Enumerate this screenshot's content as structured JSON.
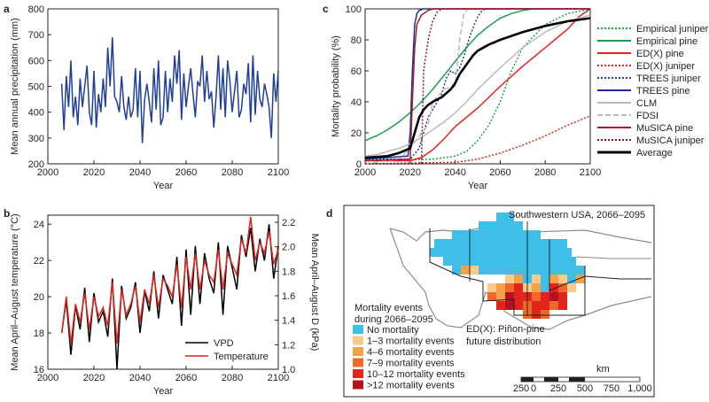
{
  "chart_data": [
    {
      "panel": "a",
      "type": "line",
      "xlabel": "Year",
      "ylabel": "Mean annual precipitation (mm)",
      "xlim": [
        2000,
        2100
      ],
      "ylim": [
        200,
        800
      ],
      "xticks": [
        2000,
        2020,
        2040,
        2060,
        2080,
        2100
      ],
      "yticks": [
        200,
        300,
        400,
        500,
        600,
        700,
        800
      ],
      "series": [
        {
          "color": "#1f3f99",
          "x": [
            2006,
            2007,
            2008,
            2009,
            2010,
            2011,
            2012,
            2013,
            2014,
            2015,
            2016,
            2017,
            2018,
            2019,
            2020,
            2021,
            2022,
            2023,
            2024,
            2025,
            2026,
            2027,
            2028,
            2029,
            2030,
            2031,
            2032,
            2033,
            2034,
            2035,
            2036,
            2037,
            2038,
            2039,
            2040,
            2041,
            2042,
            2043,
            2044,
            2045,
            2046,
            2047,
            2048,
            2049,
            2050,
            2051,
            2052,
            2053,
            2054,
            2055,
            2056,
            2057,
            2058,
            2059,
            2060,
            2061,
            2062,
            2063,
            2064,
            2065,
            2066,
            2067,
            2068,
            2069,
            2070,
            2071,
            2072,
            2073,
            2074,
            2075,
            2076,
            2077,
            2078,
            2079,
            2080,
            2081,
            2082,
            2083,
            2084,
            2085,
            2086,
            2087,
            2088,
            2089,
            2090,
            2091,
            2092,
            2093,
            2094,
            2095,
            2096,
            2097,
            2098,
            2099,
            2100
          ],
          "y": [
            510,
            330,
            540,
            420,
            600,
            380,
            460,
            350,
            530,
            420,
            500,
            580,
            400,
            350,
            560,
            340,
            470,
            400,
            530,
            420,
            650,
            500,
            690,
            460,
            440,
            400,
            540,
            420,
            370,
            460,
            380,
            410,
            570,
            380,
            560,
            280,
            450,
            510,
            440,
            360,
            570,
            410,
            600,
            350,
            380,
            560,
            400,
            530,
            440,
            620,
            510,
            640,
            370,
            550,
            420,
            500,
            570,
            470,
            380,
            520,
            500,
            620,
            440,
            560,
            450,
            480,
            340,
            460,
            620,
            410,
            570,
            380,
            600,
            520,
            400,
            480,
            560,
            380,
            410,
            510,
            470,
            590,
            360,
            620,
            390,
            560,
            450,
            420,
            510,
            470,
            420,
            300,
            550,
            440,
            560
          ]
        }
      ]
    },
    {
      "panel": "b",
      "type": "line",
      "xlabel": "Year",
      "ylabel": "Mean April–August temperature (°C)",
      "y2label": "Mean April–August D (kPa)",
      "xlim": [
        2000,
        2100
      ],
      "ylim": [
        16,
        24.5
      ],
      "y2lim": [
        1.0,
        2.2
      ],
      "xticks": [
        2000,
        2020,
        2040,
        2060,
        2080,
        2100
      ],
      "yticks": [
        16,
        18,
        20,
        22,
        24
      ],
      "y2ticks": [
        "1.0",
        "1.2",
        "1.4",
        "1.6",
        "1.8",
        "2.0",
        "2.2"
      ],
      "series": [
        {
          "name": "VPD",
          "color": "#000000",
          "x": [
            2006,
            2008,
            2010,
            2012,
            2014,
            2016,
            2018,
            2020,
            2022,
            2024,
            2026,
            2028,
            2030,
            2032,
            2034,
            2036,
            2038,
            2040,
            2042,
            2044,
            2046,
            2048,
            2050,
            2052,
            2054,
            2056,
            2058,
            2060,
            2062,
            2064,
            2066,
            2068,
            2070,
            2072,
            2074,
            2076,
            2078,
            2080,
            2082,
            2084,
            2086,
            2088,
            2090,
            2092,
            2094,
            2096,
            2098,
            2100
          ],
          "y": [
            18.0,
            19.8,
            16.8,
            19.5,
            18.2,
            20.5,
            17.5,
            20.2,
            18.6,
            19.2,
            17.8,
            21.0,
            16.0,
            20.6,
            18.8,
            19.4,
            20.8,
            18.0,
            20.3,
            19.2,
            21.4,
            18.8,
            21.2,
            20.4,
            19.6,
            22.2,
            18.4,
            22.6,
            19.0,
            22.8,
            19.6,
            22.4,
            21.0,
            20.2,
            23.0,
            19.0,
            22.8,
            21.6,
            20.4,
            23.4,
            22.2,
            23.8,
            21.4,
            23.2,
            22.0,
            24.0,
            21.0,
            22.8
          ]
        },
        {
          "name": "Temperature",
          "color": "#e1241c",
          "x": [
            2006,
            2008,
            2010,
            2012,
            2014,
            2016,
            2018,
            2020,
            2022,
            2024,
            2026,
            2028,
            2030,
            2032,
            2034,
            2036,
            2038,
            2040,
            2042,
            2044,
            2046,
            2048,
            2050,
            2052,
            2054,
            2056,
            2058,
            2060,
            2062,
            2064,
            2066,
            2068,
            2070,
            2072,
            2074,
            2076,
            2078,
            2080,
            2082,
            2084,
            2086,
            2088,
            2090,
            2092,
            2094,
            2096,
            2098,
            2100
          ],
          "y": [
            18.0,
            20.0,
            17.4,
            19.6,
            18.6,
            20.2,
            18.2,
            20.0,
            18.9,
            19.4,
            18.4,
            20.8,
            17.4,
            20.4,
            19.0,
            19.6,
            20.6,
            18.6,
            20.4,
            19.6,
            21.2,
            19.4,
            21.0,
            20.6,
            20.0,
            21.8,
            19.4,
            22.2,
            20.4,
            22.4,
            20.4,
            22.0,
            21.2,
            20.8,
            22.6,
            20.4,
            22.4,
            21.8,
            21.2,
            23.2,
            22.4,
            24.4,
            22.0,
            23.0,
            22.4,
            23.6,
            21.8,
            22.6
          ]
        }
      ],
      "legend": [
        "VPD",
        "Temperature"
      ]
    },
    {
      "panel": "c",
      "type": "line",
      "xlabel": "Year",
      "ylabel": "Mortality probability (%)",
      "xlim": [
        2000,
        2100
      ],
      "ylim": [
        0,
        100
      ],
      "xticks": [
        2000,
        2020,
        2040,
        2060,
        2080,
        2100
      ],
      "yticks": [
        0,
        20,
        40,
        60,
        80,
        100
      ],
      "series": [
        {
          "name": "Empirical juniper",
          "color": "#1aa050",
          "dash": "2,2",
          "x": [
            2000,
            2030,
            2040,
            2045,
            2050,
            2055,
            2060,
            2065,
            2070,
            2080,
            2090,
            2100
          ],
          "y": [
            2,
            3,
            5,
            8,
            15,
            25,
            40,
            60,
            75,
            90,
            97,
            100
          ]
        },
        {
          "name": "Empirical pine",
          "color": "#1aa050",
          "dash": "",
          "x": [
            2000,
            2005,
            2010,
            2015,
            2020,
            2025,
            2030,
            2035,
            2040,
            2045,
            2050,
            2055,
            2060,
            2065,
            2070,
            2075,
            2080
          ],
          "y": [
            15,
            18,
            22,
            27,
            33,
            40,
            48,
            57,
            66,
            75,
            83,
            89,
            94,
            97,
            99,
            100,
            100
          ]
        },
        {
          "name": "ED(X) pine",
          "color": "#e1241c",
          "dash": "",
          "x": [
            2000,
            2020,
            2025,
            2030,
            2035,
            2040,
            2050,
            2060,
            2070,
            2080,
            2090,
            2095,
            2100
          ],
          "y": [
            2,
            2,
            4,
            9,
            16,
            24,
            36,
            50,
            63,
            75,
            87,
            95,
            100
          ]
        },
        {
          "name": "ED(X) juniper",
          "color": "#e1241c",
          "dash": "2,2",
          "x": [
            2000,
            2040,
            2050,
            2060,
            2070,
            2080,
            2090,
            2100
          ],
          "y": [
            0,
            1,
            3,
            7,
            12,
            18,
            25,
            31
          ]
        },
        {
          "name": "TREES juniper",
          "color": "#1f3a8f",
          "dash": "2,2",
          "x": [
            2000,
            2020,
            2024,
            2026,
            2028,
            2030,
            2032,
            2034,
            2036,
            2038,
            2040,
            2042,
            2044,
            2046,
            2048,
            2050,
            2052,
            2054,
            2100
          ],
          "y": [
            3,
            3,
            10,
            20,
            30,
            35,
            40,
            45,
            55,
            60,
            58,
            62,
            70,
            80,
            88,
            95,
            99,
            100,
            100
          ]
        },
        {
          "name": "TREES pine",
          "color": "#1f2f99",
          "dash": "",
          "x": [
            2000,
            2019,
            2020,
            2021,
            2022,
            2023,
            2024,
            2026,
            2100
          ],
          "y": [
            3,
            5,
            20,
            60,
            90,
            97,
            99,
            100,
            100
          ]
        },
        {
          "name": "CLM",
          "color": "#bbbbbb",
          "dash": "",
          "x": [
            2000,
            2005,
            2010,
            2015,
            2020,
            2025,
            2030,
            2035,
            2040,
            2045,
            2050,
            2055,
            2060,
            2070,
            2080,
            2090,
            2100
          ],
          "y": [
            5,
            6,
            8,
            10,
            13,
            17,
            22,
            27,
            33,
            40,
            48,
            55,
            62,
            75,
            85,
            92,
            96
          ]
        },
        {
          "name": "FDSI",
          "color": "#bbbbbb",
          "dash": "6,3",
          "x": [
            2000,
            2015,
            2020,
            2025,
            2028,
            2030,
            2035,
            2040,
            2042,
            2044,
            2046,
            2100
          ],
          "y": [
            0,
            3,
            10,
            20,
            25,
            40,
            48,
            50,
            80,
            98,
            100,
            100
          ]
        },
        {
          "name": "MuSICA pine",
          "color": "#a31e26",
          "dash": "",
          "x": [
            2000,
            2020,
            2021,
            2022,
            2023,
            2025,
            2028,
            2030,
            2100
          ],
          "y": [
            2,
            3,
            40,
            75,
            90,
            96,
            99,
            100,
            100
          ]
        },
        {
          "name": "MuSICA juniper",
          "color": "#8b1a22",
          "dash": "2,2",
          "x": [
            2000,
            2025,
            2026,
            2028,
            2030,
            2032,
            2034,
            2100
          ],
          "y": [
            0,
            0,
            60,
            80,
            92,
            98,
            100,
            100
          ]
        },
        {
          "name": "Average",
          "color": "#000000",
          "dash": "",
          "x": [
            2000,
            2010,
            2015,
            2020,
            2022,
            2024,
            2026,
            2028,
            2030,
            2034,
            2038,
            2040,
            2042,
            2044,
            2046,
            2048,
            2050,
            2055,
            2060,
            2070,
            2080,
            2090,
            2100
          ],
          "y": [
            4,
            5,
            7,
            10,
            20,
            30,
            35,
            38,
            40,
            43,
            48,
            52,
            58,
            62,
            66,
            70,
            73,
            77,
            80,
            85,
            89,
            92,
            94
          ]
        }
      ]
    }
  ],
  "panels": {
    "a": {
      "letter": "a"
    },
    "b": {
      "letter": "b"
    },
    "c": {
      "letter": "c"
    },
    "d": {
      "letter": "d"
    }
  },
  "map": {
    "title": "Southwestern USA, 2066–2095",
    "legend_title_line1": "Mortality events",
    "legend_title_line2": "during 2066–2095",
    "legend": [
      {
        "label": "No mortality",
        "color": "#3fbfe8"
      },
      {
        "label": "1–3 mortality events",
        "color": "#f9c98a"
      },
      {
        "label": "4–6 mortality events",
        "color": "#f4a24a"
      },
      {
        "label": "7–9 mortality events",
        "color": "#ee6a2c"
      },
      {
        "label": "10–12 mortality events",
        "color": "#e1241c"
      },
      {
        "label": ">12 mortality events",
        "color": "#b5131e"
      }
    ],
    "annotation_line1": "ED(X): Piñon-pine",
    "annotation_line2": "future distribution",
    "scale_unit": "km",
    "scale_ticks": [
      "250",
      "0",
      "250",
      "500",
      "750",
      "1,000"
    ]
  }
}
